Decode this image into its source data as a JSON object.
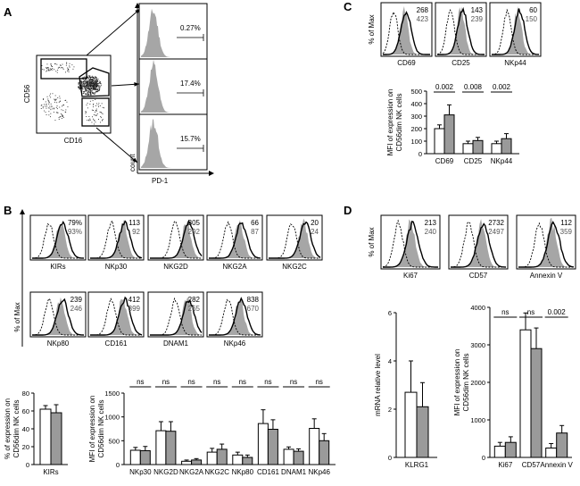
{
  "panel_labels": [
    "A",
    "B",
    "C",
    "D"
  ],
  "colors": {
    "fill_gray": "#a6a6a6",
    "bar_open": "#ffffff",
    "bar_gray": "#9a9a9a",
    "frame": "#000000",
    "dots": "#222222"
  },
  "panelA": {
    "dot_plot": {
      "ylabel": "CD56",
      "xlabel": "CD16"
    },
    "histograms": [
      {
        "value": "0.27%"
      },
      {
        "value": "17.4%"
      },
      {
        "value": "15.7%"
      }
    ],
    "hist_ylabel": "count",
    "hist_xlabel": "PD-1"
  },
  "panelB": {
    "y_axis_label": "% of Max",
    "histograms": [
      {
        "label": "KIRs",
        "value_top": "79%",
        "value_bottom": "93%"
      },
      {
        "label": "NKp30",
        "value_top": "113",
        "value_bottom": "92"
      },
      {
        "label": "NKG2D",
        "value_top": "305",
        "value_bottom": "292"
      },
      {
        "label": "NKG2A",
        "value_top": "66",
        "value_bottom": "87"
      },
      {
        "label": "NKG2C",
        "value_top": "20",
        "value_bottom": "24"
      },
      {
        "label": "NKp80",
        "value_top": "239",
        "value_bottom": "246"
      },
      {
        "label": "CD161",
        "value_top": "412",
        "value_bottom": "399"
      },
      {
        "label": "DNAM1",
        "value_top": "282",
        "value_bottom": "265"
      },
      {
        "label": "NKp46",
        "value_top": "838",
        "value_bottom": "670"
      }
    ],
    "kir_bar": {
      "ylabel_line1": "% of expression on",
      "ylabel_line2": "CD56dim NK cells",
      "ytick_labels": [
        "0",
        "20",
        "40",
        "60",
        "80"
      ]
    },
    "mfi_bar": {
      "ylabel_line1": "MFI of expression on",
      "ylabel_line2": "CD56dim NK cells",
      "ytick_labels": [
        "0",
        "500",
        "1000",
        "1500"
      ],
      "sig_labels": [
        "ns",
        "ns",
        "ns",
        "ns",
        "ns",
        "ns",
        "ns",
        "ns"
      ]
    }
  },
  "panelC": {
    "y_axis_label": "% of Max",
    "histograms": [
      {
        "label": "CD69",
        "value_top": "268",
        "value_bottom": "423"
      },
      {
        "label": "CD25",
        "value_top": "143",
        "value_bottom": "239"
      },
      {
        "label": "NKp44",
        "value_top": "60",
        "value_bottom": "150"
      }
    ],
    "bar": {
      "ylabel_line1": "MFI of expression on",
      "ylabel_line2": "CD56dim NK cells",
      "ytick_labels": [
        "0",
        "100",
        "200",
        "300",
        "400",
        "500"
      ],
      "sig_labels": [
        "0.002",
        "0.008",
        "0.002"
      ]
    }
  },
  "panelD": {
    "y_axis_label": "% of Max",
    "histograms": [
      {
        "label": "Ki67",
        "value_top": "213",
        "value_bottom": "240"
      },
      {
        "label": "CD57",
        "value_top": "2732",
        "value_bottom": "2497"
      },
      {
        "label": "Annexin V",
        "value_top": "112",
        "value_bottom": "359"
      }
    ],
    "mrna_bar": {
      "ylabel_line1": "mRNA relative level",
      "ytick_labels": [
        "0",
        "2",
        "4",
        "6"
      ]
    },
    "mfi_bar": {
      "ylabel_line1": "MFI of expression on",
      "ylabel_line2": "CD56dim NK cells",
      "ytick_labels": [
        "0",
        "1000",
        "2000",
        "3000",
        "4000"
      ],
      "sig_labels": [
        "ns",
        "ns",
        "0.002"
      ]
    }
  },
  "chart_data": [
    {
      "id": "B_kirs",
      "type": "bar",
      "title": "",
      "xlabel": "",
      "ylabel": "% of expression on CD56dim NK cells",
      "categories": [
        "KIRs"
      ],
      "ylim": [
        0,
        80
      ],
      "series": [
        {
          "name": "open",
          "values": [
            62
          ],
          "errors": [
            4
          ]
        },
        {
          "name": "gray",
          "values": [
            58
          ],
          "errors": [
            9
          ]
        }
      ]
    },
    {
      "id": "B_mfi",
      "type": "bar",
      "title": "",
      "xlabel": "",
      "ylabel": "MFI of expression on CD56dim NK cells",
      "categories": [
        "NKp30",
        "NKG2D",
        "NKG2A",
        "NKG2C",
        "NKp80",
        "CD161",
        "DNAM1",
        "NKp46"
      ],
      "ylim": [
        0,
        1500
      ],
      "series": [
        {
          "name": "open",
          "values": [
            300,
            710,
            70,
            260,
            200,
            860,
            320,
            760
          ],
          "errors": [
            60,
            190,
            25,
            80,
            60,
            290,
            50,
            200
          ]
        },
        {
          "name": "gray",
          "values": [
            290,
            700,
            95,
            320,
            150,
            740,
            280,
            500
          ],
          "errors": [
            90,
            200,
            30,
            110,
            50,
            200,
            50,
            150
          ]
        }
      ]
    },
    {
      "id": "C_mfi",
      "type": "bar",
      "title": "",
      "xlabel": "",
      "ylabel": "MFI of expression on CD56dim NK cells",
      "categories": [
        "CD69",
        "CD25",
        "NKp44"
      ],
      "ylim": [
        0,
        500
      ],
      "series": [
        {
          "name": "open",
          "values": [
            200,
            80,
            80
          ],
          "errors": [
            30,
            20,
            20
          ]
        },
        {
          "name": "gray",
          "values": [
            310,
            105,
            120
          ],
          "errors": [
            80,
            25,
            40
          ]
        }
      ]
    },
    {
      "id": "D_mrna",
      "type": "bar",
      "title": "",
      "xlabel": "",
      "ylabel": "mRNA relative level",
      "categories": [
        "KLRG1"
      ],
      "ylim": [
        0,
        6
      ],
      "series": [
        {
          "name": "open",
          "values": [
            2.7
          ],
          "errors": [
            1.3
          ]
        },
        {
          "name": "gray",
          "values": [
            2.1
          ],
          "errors": [
            1.0
          ]
        }
      ]
    },
    {
      "id": "D_mfi",
      "type": "bar",
      "title": "",
      "xlabel": "",
      "ylabel": "MFI of expression on CD56dim NK cells",
      "categories": [
        "Ki67",
        "CD57",
        "Annexin V"
      ],
      "ylim": [
        0,
        4000
      ],
      "series": [
        {
          "name": "open",
          "values": [
            300,
            3400,
            250
          ],
          "errors": [
            100,
            450,
            120
          ]
        },
        {
          "name": "gray",
          "values": [
            400,
            2900,
            650
          ],
          "errors": [
            150,
            550,
            200
          ]
        }
      ]
    }
  ]
}
